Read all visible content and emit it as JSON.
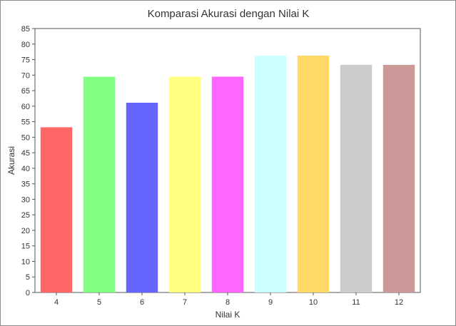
{
  "chart_data": {
    "type": "bar",
    "title": "Komparasi Akurasi dengan Nilai K",
    "xlabel": "Nilai K",
    "ylabel": "Akurasi",
    "categories": [
      "4",
      "5",
      "6",
      "7",
      "8",
      "9",
      "10",
      "11",
      "12"
    ],
    "values": [
      53.2,
      69.5,
      61.1,
      69.5,
      69.5,
      76.3,
      76.3,
      73.3,
      73.3
    ],
    "colors": [
      "#ff6666",
      "#80ff80",
      "#6666ff",
      "#ffff80",
      "#ff66ff",
      "#ccffff",
      "#ffd966",
      "#cccccc",
      "#cc9999"
    ],
    "ylim": [
      0,
      85
    ],
    "yticks": [
      0,
      5,
      10,
      15,
      20,
      25,
      30,
      35,
      40,
      45,
      50,
      55,
      60,
      65,
      70,
      75,
      80,
      85
    ],
    "grid": false,
    "legend": "none"
  }
}
